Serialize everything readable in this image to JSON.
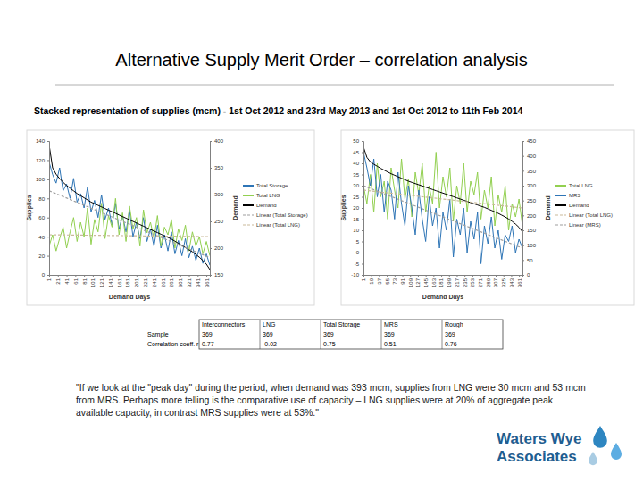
{
  "title": "Alternative Supply Merit Order – correlation analysis",
  "subtitle": "Stacked representation of supplies  (mcm) - 1st Oct 2012 and 23rd May 2013 and 1st Oct 2012 to 11th Feb 2014",
  "chart_data": [
    {
      "type": "line",
      "x_label": "Demand Days",
      "y_label": "Supplies",
      "y2_label": "Demand",
      "legend": "right",
      "x": [
        1,
        9,
        17,
        25,
        33,
        41,
        49,
        57,
        65,
        73,
        81,
        89,
        97,
        105,
        113,
        121,
        129,
        137,
        145,
        153,
        161,
        169,
        177,
        185,
        193,
        201,
        209,
        217,
        225,
        233,
        241,
        249,
        257,
        265,
        273,
        281,
        289,
        297,
        305,
        313,
        321,
        329,
        337,
        345,
        353,
        361,
        369
      ],
      "xlim": [
        1,
        369
      ],
      "xticks": [
        1,
        21,
        41,
        61,
        81,
        101,
        121,
        141,
        161,
        181,
        201,
        221,
        241,
        261,
        281,
        301,
        321,
        341,
        361
      ],
      "ylim": [
        0,
        140
      ],
      "yticks": [
        0,
        20,
        40,
        60,
        80,
        100,
        120,
        140
      ],
      "y2lim": [
        150,
        400
      ],
      "y2ticks": [
        150,
        200,
        250,
        300,
        350,
        400
      ],
      "series": [
        {
          "name": "Total Storage",
          "color": "#2e75b6",
          "line_style": "solid",
          "values": [
            118,
            105,
            96,
            112,
            88,
            95,
            80,
            101,
            76,
            85,
            70,
            92,
            66,
            78,
            60,
            84,
            58,
            70,
            52,
            75,
            48,
            62,
            45,
            68,
            40,
            55,
            38,
            60,
            35,
            48,
            30,
            52,
            28,
            42,
            25,
            45,
            22,
            36,
            20,
            38,
            18,
            30,
            15,
            28,
            12,
            22,
            10
          ]
        },
        {
          "name": "Total LNG",
          "color": "#92d050",
          "line_style": "solid",
          "values": [
            30,
            42,
            25,
            38,
            50,
            28,
            45,
            60,
            35,
            55,
            40,
            70,
            32,
            58,
            45,
            75,
            38,
            62,
            50,
            80,
            42,
            65,
            35,
            72,
            48,
            60,
            30,
            68,
            44,
            55,
            38,
            62,
            30,
            50,
            42,
            58,
            28,
            48,
            36,
            52,
            25,
            45,
            30,
            40,
            22,
            35,
            20
          ]
        },
        {
          "name": "Demand",
          "color": "#000000",
          "line_style": "solid",
          "axis": "y2",
          "values": [
            393,
            350,
            338,
            330,
            323,
            317,
            312,
            307,
            302,
            298,
            294,
            290,
            286,
            283,
            280,
            277,
            274,
            271,
            268,
            265,
            262,
            259,
            256,
            253,
            250,
            247,
            244,
            241,
            238,
            235,
            232,
            229,
            226,
            223,
            220,
            217,
            213,
            209,
            205,
            201,
            197,
            193,
            188,
            183,
            177,
            170,
            160
          ]
        },
        {
          "name": "Linear (Total Storage)",
          "color": "#9e9e9e",
          "line_style": "dashed",
          "x": [
            1,
            369
          ],
          "values": [
            88,
            18
          ]
        },
        {
          "name": "Linear (Total LNG)",
          "color": "#c9b99a",
          "line_style": "dashed",
          "x": [
            1,
            369
          ],
          "values": [
            42,
            40
          ]
        }
      ]
    },
    {
      "type": "line",
      "x_label": "Demand Days",
      "y_label": "Supplies",
      "y2_label": "Demand",
      "legend": "right",
      "x": [
        1,
        9,
        17,
        25,
        33,
        41,
        49,
        57,
        65,
        73,
        81,
        89,
        97,
        105,
        113,
        121,
        129,
        137,
        145,
        153,
        161,
        169,
        177,
        185,
        193,
        201,
        209,
        217,
        225,
        233,
        241,
        249,
        257,
        265,
        273,
        281,
        289,
        297,
        305,
        313,
        321,
        329,
        337,
        345,
        353,
        361,
        369
      ],
      "xlim": [
        1,
        369
      ],
      "xticks": [
        1,
        19,
        37,
        55,
        73,
        91,
        109,
        127,
        145,
        163,
        181,
        199,
        217,
        235,
        253,
        271,
        289,
        307,
        325,
        343,
        361
      ],
      "ylim": [
        -10,
        50
      ],
      "yticks": [
        -10,
        -5,
        0,
        5,
        10,
        15,
        20,
        25,
        30,
        35,
        40,
        45,
        50
      ],
      "y2lim": [
        0,
        450
      ],
      "y2ticks": [
        0,
        50,
        100,
        150,
        200,
        250,
        300,
        350,
        400,
        450
      ],
      "series": [
        {
          "name": "Total LNG",
          "color": "#92d050",
          "line_style": "solid",
          "values": [
            30,
            22,
            35,
            18,
            40,
            25,
            32,
            15,
            38,
            28,
            20,
            42,
            24,
            33,
            16,
            36,
            26,
            40,
            18,
            30,
            22,
            45,
            20,
            34,
            25,
            38,
            14,
            30,
            22,
            40,
            18,
            32,
            26,
            36,
            15,
            28,
            20,
            34,
            12,
            26,
            18,
            30,
            10,
            22,
            16,
            24,
            12
          ]
        },
        {
          "name": "MRS",
          "color": "#2e75b6",
          "line_style": "solid",
          "values": [
            45,
            38,
            30,
            42,
            25,
            35,
            18,
            32,
            28,
            15,
            36,
            22,
            12,
            30,
            20,
            8,
            28,
            15,
            5,
            25,
            12,
            20,
            2,
            18,
            10,
            24,
            -2,
            15,
            8,
            20,
            0,
            14,
            6,
            18,
            -5,
            12,
            4,
            16,
            2,
            10,
            -3,
            8,
            5,
            12,
            0,
            6,
            2
          ]
        },
        {
          "name": "Demand",
          "color": "#000000",
          "line_style": "solid",
          "axis": "y2",
          "values": [
            430,
            395,
            380,
            372,
            365,
            358,
            352,
            346,
            340,
            335,
            330,
            325,
            320,
            315,
            311,
            307,
            303,
            299,
            295,
            291,
            287,
            283,
            279,
            275,
            271,
            267,
            263,
            259,
            255,
            251,
            247,
            243,
            239,
            235,
            231,
            227,
            222,
            217,
            212,
            207,
            201,
            195,
            188,
            180,
            171,
            160,
            145
          ]
        },
        {
          "name": "Linear (Total LNG)",
          "color": "#c9b99a",
          "line_style": "dashed",
          "x": [
            1,
            369
          ],
          "values": [
            28,
            20
          ]
        },
        {
          "name": "Linear (MRS)",
          "color": "#9e9e9e",
          "line_style": "dashed",
          "x": [
            1,
            369
          ],
          "values": [
            30,
            2
          ]
        }
      ]
    }
  ],
  "table": {
    "header": [
      "Interconnectors",
      "LNG",
      "Total Storage",
      "MRS",
      "Rough"
    ],
    "rows": [
      {
        "label": "Sample",
        "values": [
          369,
          369,
          369,
          369,
          369
        ]
      },
      {
        "label": "Correlation coeff. r",
        "values": [
          0.77,
          -0.02,
          0.75,
          0.51,
          0.76
        ]
      }
    ]
  },
  "quote": "\"If we look at the \"peak day\" during the period, when demand was 393 mcm, supplies from LNG were 30 mcm and 53 mcm from MRS.  Perhaps more telling is the comparative use of capacity – LNG supplies were at 20% of aggregate peak available capacity, in contrast MRS supplies were at 53%.\"",
  "logo": [
    "Waters Wye",
    "Associates"
  ]
}
